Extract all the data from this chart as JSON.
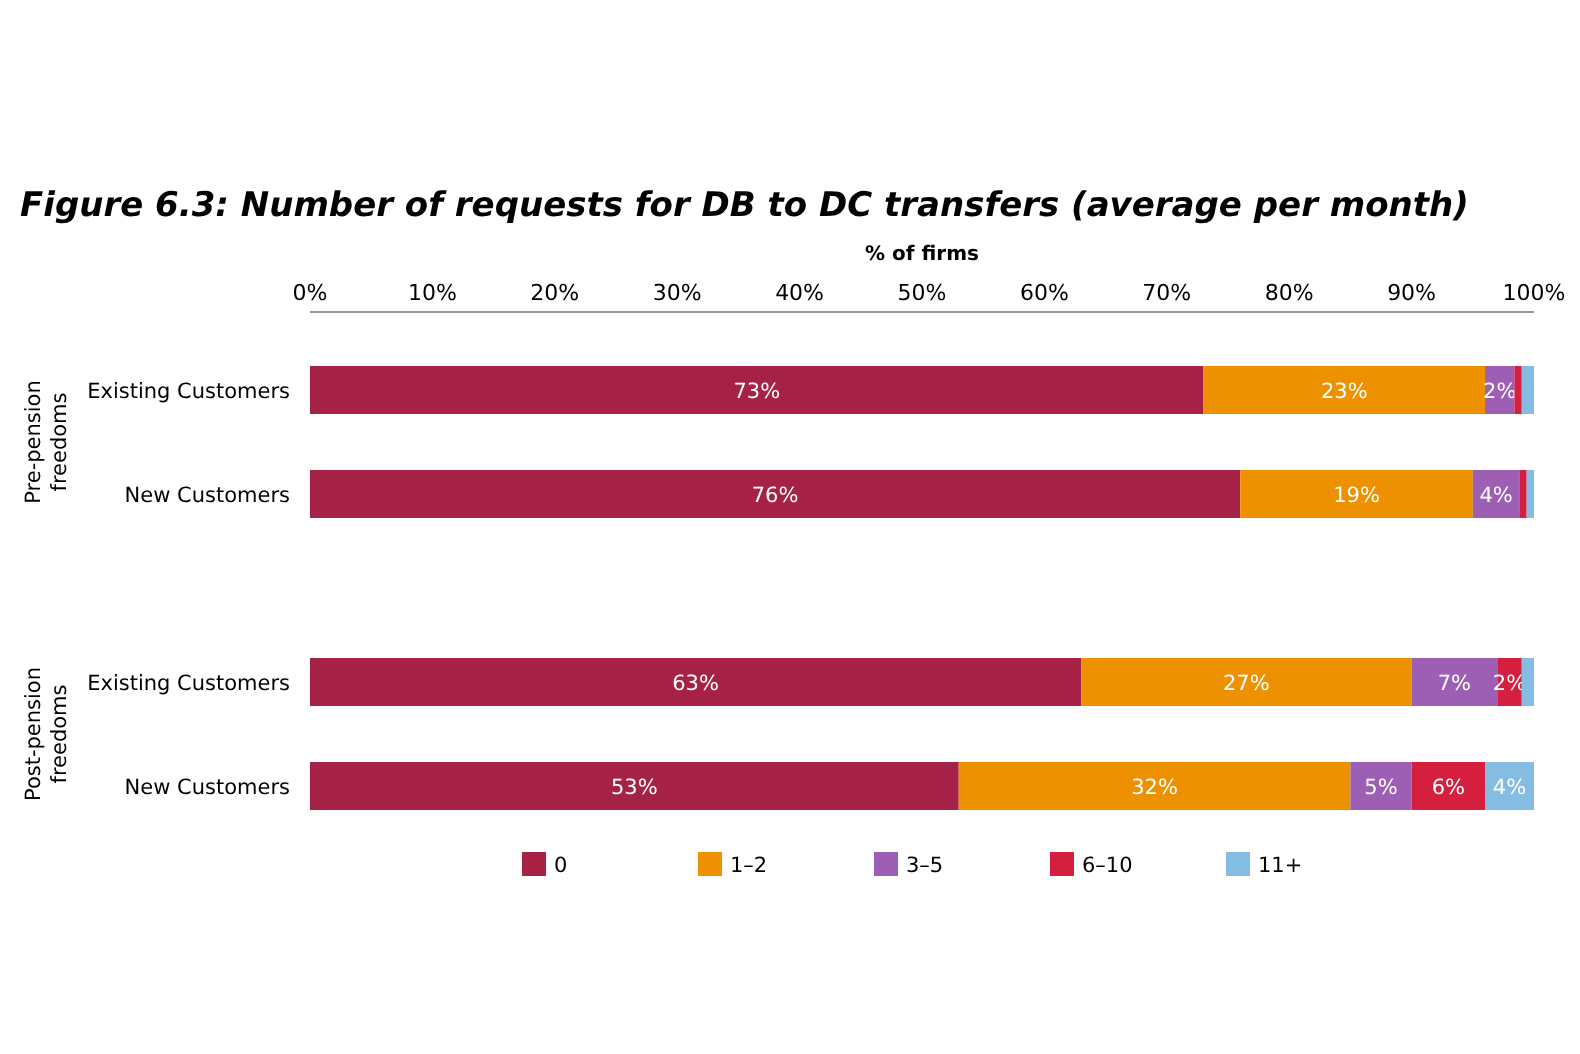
{
  "chart_data": {
    "type": "bar",
    "orientation": "horizontal",
    "stacked": true,
    "title": "Figure 6.3: Number of requests for DB to DC transfers (average per month)",
    "xlabel": "% of firms",
    "categories": [
      "Existing Customers",
      "New Customers",
      "Existing Customers",
      "New Customers"
    ],
    "annotations": [
      "Pre-pension freedoms",
      "Post-pension freedoms"
    ],
    "xlim": [
      0,
      100
    ],
    "xticks": [
      {
        "value": 0,
        "label": "0%"
      },
      {
        "value": 10,
        "label": "10%"
      },
      {
        "value": 20,
        "label": "20%"
      },
      {
        "value": 30,
        "label": "30%"
      },
      {
        "value": 40,
        "label": "40%"
      },
      {
        "value": 50,
        "label": "50%"
      },
      {
        "value": 60,
        "label": "60%"
      },
      {
        "value": 70,
        "label": "70%"
      },
      {
        "value": 80,
        "label": "80%"
      },
      {
        "value": 90,
        "label": "90%"
      },
      {
        "value": 100,
        "label": "100%"
      }
    ],
    "series": [
      {
        "name": "0",
        "color": "#a52145",
        "values": [
          73,
          76,
          63,
          53
        ],
        "value_labels": [
          "73%",
          "76%",
          "63%",
          "53%"
        ]
      },
      {
        "name": "1–2",
        "color": "#ee9100",
        "values": [
          23,
          19,
          27,
          32
        ],
        "value_labels": [
          "23%",
          "19%",
          "27%",
          "32%"
        ]
      },
      {
        "name": "3–5",
        "color": "#9c5fb4",
        "values": [
          2.4,
          3.8,
          7,
          5
        ],
        "value_labels": [
          "2%",
          "4%",
          "7%",
          "5%"
        ]
      },
      {
        "name": "6–10",
        "color": "#d41f3f",
        "values": [
          0.6,
          0.6,
          2,
          6
        ],
        "value_labels": [
          null,
          null,
          "2%",
          "6%"
        ]
      },
      {
        "name": "11+",
        "color": "#85bde2",
        "values": [
          1,
          0.6,
          1,
          4
        ],
        "value_labels": [
          null,
          null,
          null,
          "4%"
        ]
      }
    ],
    "grid": false,
    "legend": "bottom"
  }
}
